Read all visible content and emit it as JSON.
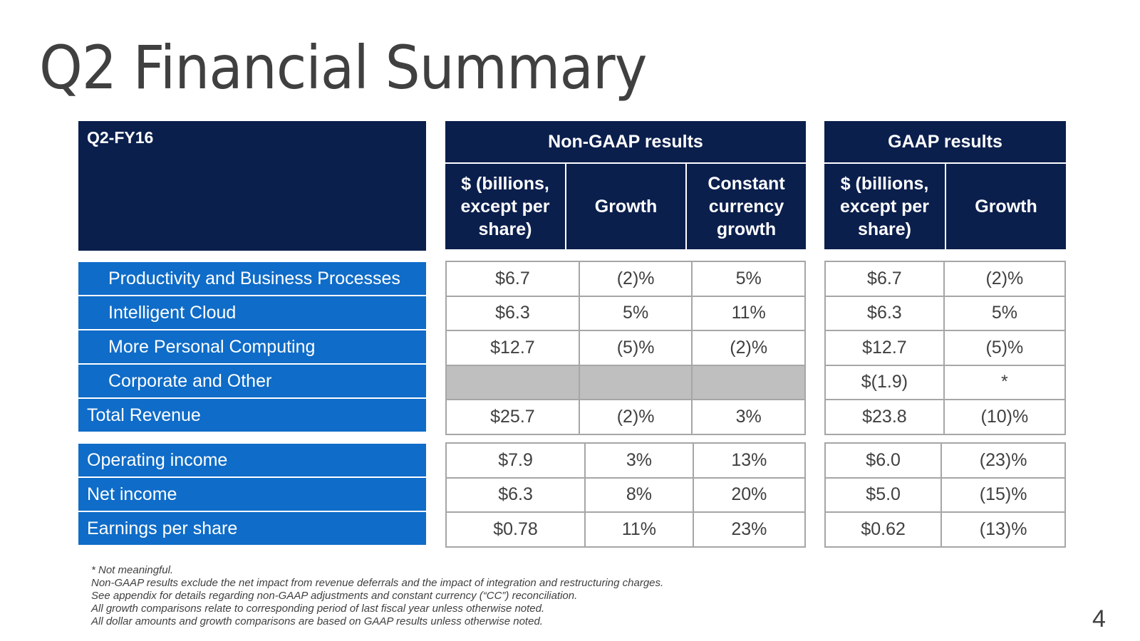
{
  "title": "Q2 Financial Summary",
  "period_label": "Q2-FY16",
  "non_gaap": {
    "title": "Non-GAAP results",
    "columns": [
      "$ (billions, except per share)",
      "Growth",
      "Constant currency growth"
    ]
  },
  "gaap": {
    "title": "GAAP results",
    "columns": [
      "$ (billions, except per share)",
      "Growth"
    ]
  },
  "revenue_rows": [
    {
      "label": "Productivity and Business Processes",
      "ng": [
        "$6.7",
        "(2)%",
        "5%"
      ],
      "g": [
        "$6.7",
        "(2)%"
      ]
    },
    {
      "label": "Intelligent Cloud",
      "ng": [
        "$6.3",
        "5%",
        "11%"
      ],
      "g": [
        "$6.3",
        "5%"
      ]
    },
    {
      "label": "More Personal Computing",
      "ng": [
        "$12.7",
        "(5)%",
        "(2)%"
      ],
      "g": [
        "$12.7",
        "(5)%"
      ]
    },
    {
      "label": "Corporate and Other",
      "ng": [
        "",
        "",
        ""
      ],
      "g": [
        "$(1.9)",
        "*"
      ]
    },
    {
      "label": "Total Revenue",
      "ng": [
        "$25.7",
        "(2)%",
        "3%"
      ],
      "g": [
        "$23.8",
        "(10)%"
      ]
    }
  ],
  "income_rows": [
    {
      "label": "Operating income",
      "ng": [
        "$7.9",
        "3%",
        "13%"
      ],
      "g": [
        "$6.0",
        "(23)%"
      ]
    },
    {
      "label": "Net income",
      "ng": [
        "$6.3",
        "8%",
        "20%"
      ],
      "g": [
        "$5.0",
        "(15)%"
      ]
    },
    {
      "label": "Earnings per share",
      "ng": [
        "$0.78",
        "11%",
        "23%"
      ],
      "g": [
        "$0.62",
        "(13)%"
      ]
    }
  ],
  "notes": [
    "* Not meaningful.",
    "Non-GAAP results exclude the net impact from revenue deferrals and the impact of integration and restructuring charges.",
    "See appendix for details regarding non-GAAP adjustments and constant currency (“CC”) reconciliation.",
    "All growth comparisons relate to corresponding period of last fiscal year unless otherwise noted.",
    "All dollar amounts and growth comparisons are based on GAAP results unless otherwise noted."
  ],
  "page_number": "4",
  "colors": {
    "navy": "#0b1f4d",
    "blue": "#0f6cc8",
    "gray_cell": "#bfbfbf"
  }
}
